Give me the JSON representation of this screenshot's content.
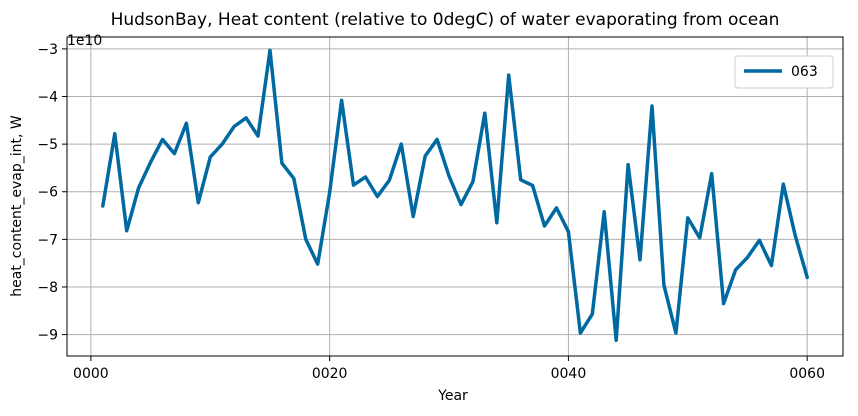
{
  "chart_data": {
    "type": "line",
    "title": "HudsonBay, Heat content (relative to 0degC) of water evaporating from ocean",
    "xlabel": "Year",
    "ylabel": "heat_content_evap_int, W",
    "offset_label": "1e10",
    "xlim": [
      -2,
      63
    ],
    "ylim": [
      -9.45,
      -2.75
    ],
    "x_ticks": [
      0,
      20,
      40,
      60
    ],
    "x_tick_labels": [
      "0000",
      "0020",
      "0040",
      "0060"
    ],
    "y_ticks": [
      -9,
      -8,
      -7,
      -6,
      -5,
      -4,
      -3
    ],
    "y_tick_labels": [
      "−9",
      "−8",
      "−7",
      "−6",
      "−5",
      "−4",
      "−3"
    ],
    "grid": true,
    "legend_position": "top-right",
    "series": [
      {
        "name": "063",
        "color": "#0069a1",
        "x": [
          1,
          2,
          3,
          4,
          5,
          6,
          7,
          8,
          9,
          10,
          11,
          12,
          13,
          14,
          15,
          16,
          17,
          18,
          19,
          20,
          21,
          22,
          23,
          24,
          25,
          26,
          27,
          28,
          29,
          30,
          31,
          32,
          33,
          34,
          35,
          36,
          37,
          38,
          39,
          40,
          41,
          42,
          43,
          44,
          45,
          46,
          47,
          48,
          49,
          50,
          51,
          52,
          53,
          54,
          55,
          56,
          57,
          58,
          59,
          60
        ],
        "values": [
          -6.3,
          -4.78,
          -6.82,
          -5.92,
          -5.38,
          -4.9,
          -5.2,
          -4.56,
          -6.23,
          -5.27,
          -5.0,
          -4.63,
          -4.45,
          -4.83,
          -3.03,
          -5.4,
          -5.72,
          -7.0,
          -7.52,
          -6.02,
          -4.08,
          -5.86,
          -5.69,
          -6.1,
          -5.76,
          -5.0,
          -6.52,
          -5.25,
          -4.9,
          -5.67,
          -6.27,
          -5.79,
          -4.35,
          -6.65,
          -3.55,
          -5.75,
          -5.87,
          -6.72,
          -6.34,
          -6.84,
          -8.97,
          -8.57,
          -6.42,
          -9.12,
          -5.43,
          -7.43,
          -4.2,
          -7.96,
          -8.97,
          -6.55,
          -6.97,
          -5.62,
          -8.35,
          -7.64,
          -7.38,
          -7.02,
          -7.55,
          -5.84,
          -6.92,
          -7.8
        ]
      }
    ]
  }
}
